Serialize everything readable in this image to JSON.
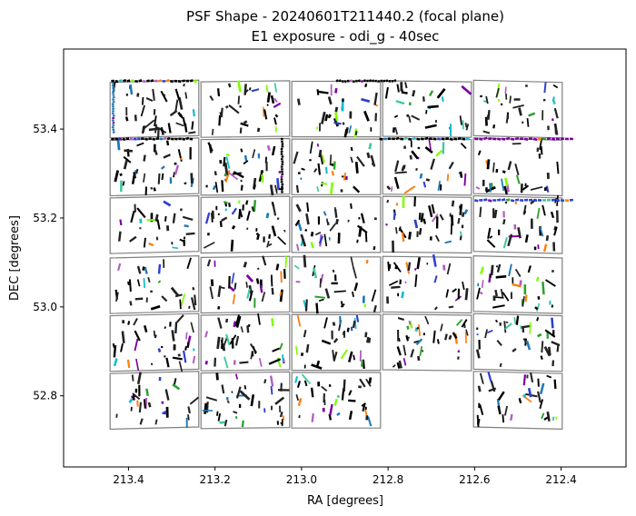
{
  "chart_data": {
    "type": "scatter",
    "title": "PSF Shape - 20240601T211440.2 (focal plane)",
    "subtitle": "E1 exposure - odi_g - 40sec",
    "xlabel": "RA [degrees]",
    "ylabel": "DEC [degrees]",
    "xlim": [
      213.55,
      212.25
    ],
    "ylim": [
      52.64,
      53.58
    ],
    "x_inverted": true,
    "xticks": [
      213.4,
      213.2,
      213.0,
      212.8,
      212.6,
      212.4
    ],
    "xtick_labels": [
      "213.4",
      "213.2",
      "213.0",
      "212.8",
      "212.6",
      "212.4"
    ],
    "yticks": [
      52.8,
      53.0,
      53.2,
      53.4
    ],
    "ytick_labels": [
      "52.8",
      "53.0",
      "53.2",
      "53.4"
    ],
    "grid": false,
    "legend": "none",
    "frame_color": "#808080",
    "chip_columns_ra": [
      213.34,
      213.13,
      212.92,
      212.71,
      212.5
    ],
    "chip_rows_dec": [
      53.445,
      53.315,
      53.185,
      53.05,
      52.92,
      52.79
    ],
    "chip_width_deg": 0.205,
    "chip_height_deg": 0.125,
    "missing_chips": [
      [
        3,
        5
      ]
    ],
    "whisker_colors": [
      "#000000",
      "#222222",
      "#1f77b4",
      "#17becf",
      "#2ca02c",
      "#7fff00",
      "#7b00a0",
      "#b05fc0",
      "#2f3fcf",
      "#ff7f0e",
      "#3cc8a0"
    ]
  }
}
